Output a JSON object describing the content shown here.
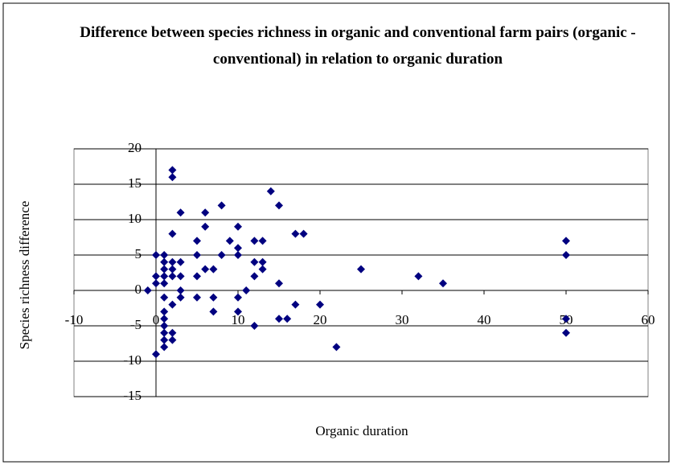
{
  "chart_data": {
    "type": "scatter",
    "title": "Difference between species richness in organic and conventional farm pairs (organic - conventional) in relation to organic duration",
    "x_label": "Organic duration",
    "y_label": "Species richness difference",
    "color": "#000080",
    "grid": true,
    "xlim": [
      -10,
      60
    ],
    "xticks": [
      -10,
      0,
      10,
      20,
      30,
      40,
      50,
      60
    ],
    "ylim": [
      -15,
      20
    ],
    "yticks": [
      -15,
      -10,
      -5,
      0,
      5,
      10,
      15,
      20
    ],
    "x": [
      -1,
      0,
      0,
      0,
      0,
      1,
      1,
      1,
      1,
      1,
      1,
      1,
      1,
      1,
      1,
      1,
      1,
      2,
      2,
      2,
      2,
      2,
      2,
      2,
      2,
      2,
      3,
      3,
      3,
      3,
      3,
      5,
      5,
      5,
      5,
      6,
      6,
      6,
      7,
      7,
      7,
      8,
      8,
      9,
      10,
      10,
      10,
      10,
      10,
      11,
      12,
      12,
      12,
      12,
      13,
      13,
      13,
      14,
      15,
      15,
      15,
      16,
      17,
      17,
      18,
      20,
      22,
      25,
      32,
      35,
      50,
      50,
      50,
      50
    ],
    "values": [
      0,
      5,
      2,
      1,
      -9,
      5,
      4,
      3,
      2,
      1,
      -1,
      -3,
      -4,
      -5,
      -6,
      -7,
      -8,
      17,
      16,
      8,
      4,
      3,
      2,
      -2,
      -6,
      -7,
      11,
      4,
      2,
      0,
      -1,
      7,
      5,
      2,
      -1,
      11,
      9,
      3,
      3,
      -1,
      -3,
      5,
      12,
      7,
      9,
      6,
      5,
      -1,
      -3,
      0,
      4,
      2,
      7,
      -5,
      7,
      4,
      3,
      14,
      12,
      1,
      -4,
      -4,
      -2,
      8,
      8,
      -2,
      -8,
      3,
      2,
      1,
      7,
      5,
      -4,
      -6
    ]
  }
}
